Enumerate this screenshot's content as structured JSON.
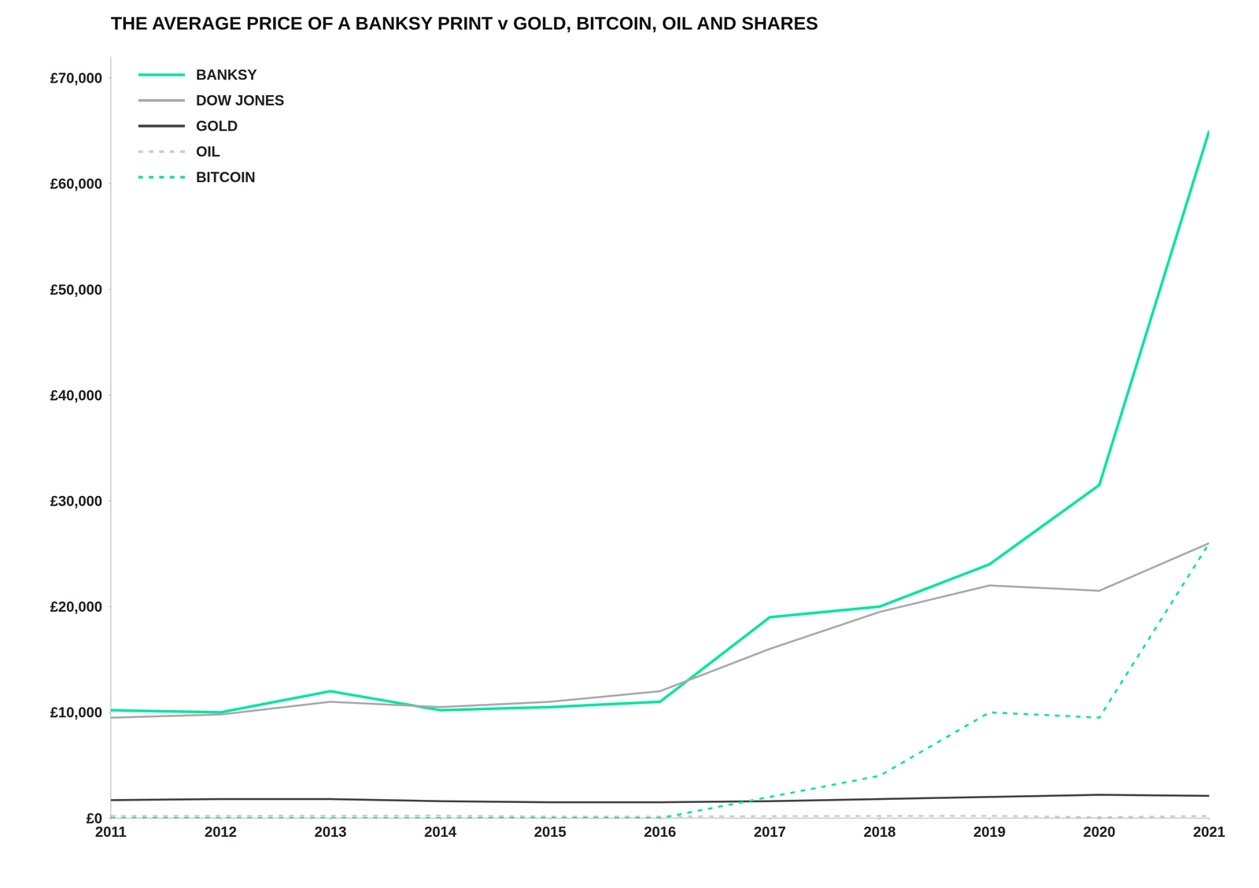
{
  "chart_data": {
    "type": "line",
    "title": "THE AVERAGE PRICE OF A BANKSY PRINT v GOLD, BITCOIN, OIL AND SHARES",
    "x": [
      2011,
      2012,
      2013,
      2014,
      2015,
      2016,
      2017,
      2018,
      2019,
      2020,
      2021
    ],
    "series": [
      {
        "name": "BANKSY",
        "color": "#00e5a0",
        "line_style": "solid",
        "values": [
          10200,
          10000,
          12000,
          10200,
          10500,
          11000,
          19000,
          20000,
          24000,
          31500,
          65000
        ]
      },
      {
        "name": "DOW JONES",
        "color": "#aaaaaa",
        "line_style": "solid",
        "values": [
          9500,
          9800,
          11000,
          10500,
          11000,
          12000,
          16000,
          19500,
          22000,
          21500,
          26000
        ]
      },
      {
        "name": "GOLD",
        "color": "#444444",
        "line_style": "solid",
        "values": [
          1700,
          1800,
          1800,
          1600,
          1500,
          1500,
          1600,
          1800,
          2000,
          2200,
          2100
        ]
      },
      {
        "name": "OIL",
        "color": "#cccccc",
        "line_style": "dashed",
        "values": [
          200,
          210,
          220,
          230,
          150,
          150,
          180,
          200,
          210,
          80,
          200
        ]
      },
      {
        "name": "BITCOIN",
        "color": "#00e5a0",
        "line_style": "dashed",
        "values": [
          0,
          0,
          0,
          0,
          0,
          0,
          2000,
          4000,
          10000,
          9500,
          26000
        ]
      }
    ],
    "xlim": [
      2011,
      2021
    ],
    "xticks": [
      2011,
      2012,
      2013,
      2014,
      2015,
      2016,
      2017,
      2018,
      2019,
      2020,
      2021
    ],
    "ylim": [
      0,
      72000
    ],
    "yticks": [
      {
        "value": 0,
        "label": "£0"
      },
      {
        "value": 10000,
        "label": "£10,000"
      },
      {
        "value": 20000,
        "label": "£20,000"
      },
      {
        "value": 30000,
        "label": "£30,000"
      },
      {
        "value": 40000,
        "label": "£40,000"
      },
      {
        "value": 50000,
        "label": "£50,000"
      },
      {
        "value": 60000,
        "label": "£60,000"
      },
      {
        "value": 70000,
        "label": "£70,000"
      }
    ],
    "grid": false,
    "legend": "upper left"
  }
}
